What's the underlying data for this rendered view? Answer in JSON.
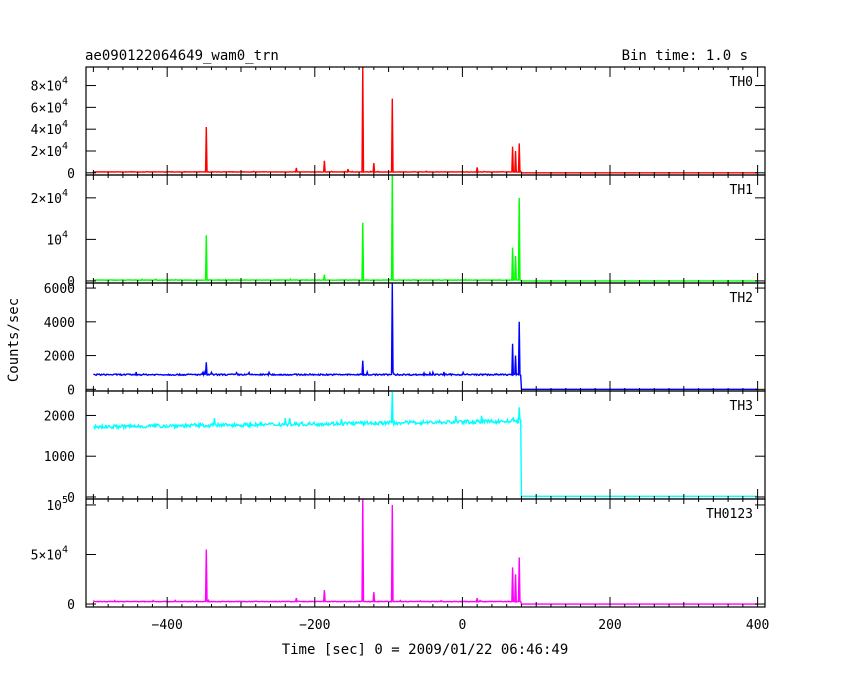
{
  "chart_data": {
    "type": "line",
    "title": "ae090122064649_wam0_trn",
    "bin_time_label": "Bin time: 1.0 s",
    "xlabel": "Time [sec] 0 = 2009/01/22 06:46:49",
    "ylabel": "Counts/sec",
    "xlim": [
      -510,
      410
    ],
    "x_ticks": [
      -400,
      -200,
      0,
      200,
      400
    ],
    "x_tick_labels": [
      "−400",
      "−200",
      "0",
      "200",
      "400"
    ],
    "data_start": -500,
    "data_end": 400,
    "cutoff": 78,
    "panels": [
      {
        "name": "TH0",
        "color": "#ff0000",
        "ylim": [
          -2000,
          97000
        ],
        "y_ticks": [
          {
            "v": 0,
            "label": "0"
          },
          {
            "v": 20000,
            "label": "2×10",
            "exp": "4"
          },
          {
            "v": 40000,
            "label": "4×10",
            "exp": "4"
          },
          {
            "v": 60000,
            "label": "6×10",
            "exp": "4"
          },
          {
            "v": 80000,
            "label": "8×10",
            "exp": "4"
          }
        ],
        "baseline": 800,
        "noise": 150,
        "after": 0,
        "spikes": [
          [
            -347,
            42000
          ],
          [
            -187,
            11000
          ],
          [
            -135,
            97000
          ],
          [
            -95,
            68000
          ],
          [
            -225,
            4500
          ],
          [
            -155,
            3500
          ],
          [
            -120,
            9000
          ],
          [
            20,
            5000
          ],
          [
            68,
            24000
          ],
          [
            72,
            20000
          ],
          [
            77,
            27000
          ]
        ]
      },
      {
        "name": "TH1",
        "color": "#00ff00",
        "ylim": [
          -500,
          25500
        ],
        "y_ticks": [
          {
            "v": 0,
            "label": "0"
          },
          {
            "v": 10000,
            "label": "10",
            "exp": "4"
          },
          {
            "v": 20000,
            "label": "2×10",
            "exp": "4"
          }
        ],
        "baseline": 200,
        "noise": 60,
        "after": 0,
        "spikes": [
          [
            -347,
            11000
          ],
          [
            -187,
            1500
          ],
          [
            -135,
            14000
          ],
          [
            -95,
            25500
          ],
          [
            68,
            8000
          ],
          [
            72,
            6000
          ],
          [
            77,
            20000
          ]
        ]
      },
      {
        "name": "TH2",
        "color": "#0000ff",
        "ylim": [
          -100,
          6300
        ],
        "y_ticks": [
          {
            "v": 0,
            "label": "0"
          },
          {
            "v": 2000,
            "label": "2000"
          },
          {
            "v": 4000,
            "label": "4000"
          },
          {
            "v": 6000,
            "label": "6000"
          }
        ],
        "baseline": 870,
        "noise": 40,
        "after": 0,
        "spikes": [
          [
            -347,
            1600
          ],
          [
            -135,
            1700
          ],
          [
            -95,
            6300
          ],
          [
            68,
            2700
          ],
          [
            72,
            2000
          ],
          [
            77,
            4000
          ]
        ]
      },
      {
        "name": "TH3",
        "color": "#00ffff",
        "ylim": [
          -50,
          2600
        ],
        "y_ticks": [
          {
            "v": 0,
            "label": "0"
          },
          {
            "v": 1000,
            "label": "1000"
          },
          {
            "v": 2000,
            "label": "2000"
          }
        ],
        "baseline": 1720,
        "baseline_end": 1860,
        "noise": 45,
        "after": 15,
        "spikes": [
          [
            -95,
            2600
          ],
          [
            77,
            2200
          ]
        ]
      },
      {
        "name": "TH0123",
        "color": "#ff00ff",
        "ylim": [
          -3000,
          106000
        ],
        "y_ticks": [
          {
            "v": 0,
            "label": "0"
          },
          {
            "v": 50000,
            "label": "5×10",
            "exp": "4"
          },
          {
            "v": 100000,
            "label": "10",
            "exp": "5"
          }
        ],
        "baseline": 2500,
        "noise": 300,
        "after": 0,
        "spikes": [
          [
            -347,
            55000
          ],
          [
            -187,
            14000
          ],
          [
            -135,
            106000
          ],
          [
            -95,
            100000
          ],
          [
            -225,
            6000
          ],
          [
            -120,
            12000
          ],
          [
            20,
            6000
          ],
          [
            68,
            37000
          ],
          [
            72,
            30000
          ],
          [
            77,
            47000
          ]
        ]
      }
    ]
  }
}
